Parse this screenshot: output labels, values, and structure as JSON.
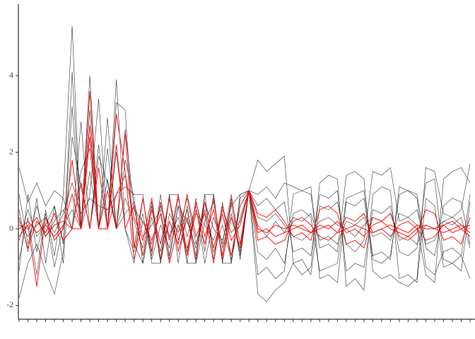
{
  "chart_data": {
    "type": "parallel",
    "categories": [
      null,
      null,
      null,
      null,
      null,
      null,
      null,
      null,
      null,
      null,
      null,
      null,
      null,
      null,
      null,
      null,
      null,
      null,
      null,
      null,
      null,
      null,
      null,
      null,
      null,
      null,
      null,
      null,
      null,
      null,
      null,
      null,
      null,
      null,
      null,
      null,
      null,
      null,
      null,
      null,
      null,
      null,
      null,
      null,
      null,
      null,
      null,
      null,
      null,
      null,
      null,
      null
    ],
    "ylim": [
      -2.36,
      5.83
    ],
    "yticks": [
      -2,
      0,
      2,
      4
    ],
    "series": [
      {
        "color": "#000000",
        "values": [
          0.5,
          -0.6,
          0.8,
          -0.9,
          0.6,
          -0.4,
          3.2,
          0,
          1.5,
          0,
          2.1,
          0,
          1.8,
          0.8,
          -0.9,
          0.7,
          -0.8,
          0.9,
          -0.9,
          0.6,
          -0.7,
          0.9,
          -0.8,
          0.7,
          -0.9,
          0.8,
          1,
          -0.6,
          -0.8,
          -0.5,
          -0.9,
          0.4,
          0.5,
          0.3,
          -1.1,
          -1.0,
          -0.9,
          0.8,
          0.9,
          1.0,
          -0.7,
          -0.6,
          -0.8,
          1.1,
          1.0,
          0.9,
          -0.5,
          -0.7,
          0.6,
          0.8,
          0.7,
          -0.4
        ]
      },
      {
        "color": "#000000",
        "values": [
          -0.8,
          0.3,
          -1.2,
          0.5,
          -0.7,
          0.9,
          5.3,
          0,
          0.9,
          3.4,
          0,
          3.9,
          0,
          -0.9,
          0.8,
          -0.7,
          0.9,
          -0.8,
          0.6,
          -0.9,
          0.8,
          -0.6,
          0.9,
          -0.9,
          0.7,
          -0.8,
          1,
          1.8,
          1.5,
          1.7,
          1.9,
          -0.9,
          -1.2,
          -1.0,
          1.2,
          1.4,
          1.3,
          -1.5,
          -1.3,
          -1.6,
          0.9,
          1.1,
          1.0,
          -1.3,
          -1.2,
          -1.4,
          0.8,
          0.6,
          -1.0,
          -0.9,
          -1.1,
          0.7
        ]
      },
      {
        "color": "#000000",
        "values": [
          1.6,
          0.7,
          1.2,
          0.6,
          1.0,
          0.8,
          0,
          2.8,
          0,
          1.9,
          1.2,
          0,
          2.6,
          0.5,
          0.2,
          -0.4,
          0.6,
          -0.2,
          0.3,
          -0.5,
          0.4,
          0.1,
          -0.3,
          0.5,
          -0.1,
          0.2,
          1,
          -1.7,
          -1.9,
          -1.6,
          -1.4,
          -0.9,
          -0.8,
          -1.2,
          0.6,
          0.5,
          0.7,
          -0.4,
          -0.6,
          -0.3,
          1.5,
          1.4,
          1.6,
          0.2,
          0.3,
          0.1,
          -1.2,
          -1.4,
          1.3,
          1.5,
          1.6,
          1.2
        ]
      },
      {
        "color": "#000000",
        "values": [
          -1.8,
          -0.9,
          -0.4,
          -1.1,
          -1.7,
          -0.6,
          4.1,
          0,
          3.1,
          0,
          0,
          3.3,
          3.1,
          -0.4,
          -0.9,
          0.3,
          -0.6,
          0.8,
          -0.3,
          0.5,
          -0.9,
          0.2,
          0.7,
          -0.5,
          0.4,
          -0.6,
          1,
          0.9,
          1.1,
          0.8,
          1.2,
          1.1,
          1.0,
          0.9,
          -0.5,
          -0.4,
          -0.6,
          1.4,
          1.5,
          1.3,
          -1.1,
          -1.3,
          -1.2,
          -1.4,
          -1.5,
          -1.3,
          1.6,
          1.5,
          0.4,
          0.3,
          0.5,
          1.7
        ]
      },
      {
        "color": "#000000",
        "values": [
          0.2,
          -0.2,
          0.1,
          0.3,
          -0.1,
          0.4,
          1.2,
          0.4,
          0.8,
          0.6,
          0.5,
          0.9,
          1.1,
          0.9,
          0.9,
          -0.9,
          -0.9,
          0.9,
          0.9,
          -0.9,
          -0.9,
          0.9,
          0.9,
          -0.9,
          -0.9,
          0.9,
          1,
          0.3,
          0.2,
          0.4,
          0.1,
          -0.2,
          -0.3,
          -0.1,
          0.2,
          0.3,
          0.1,
          0.0,
          -0.2,
          0.1,
          0.3,
          0.2,
          0.4,
          -0.3,
          -0.2,
          -0.4,
          0.1,
          0.0,
          0.2,
          0.3,
          0.1,
          0.0
        ]
      },
      {
        "color": "#000000",
        "values": [
          -0.3,
          0.5,
          -0.2,
          0.1,
          0.6,
          -0.9,
          2.4,
          1.1,
          0,
          2.2,
          0,
          2.0,
          0,
          -0.6,
          0.4,
          -0.8,
          0.1,
          -0.5,
          0.8,
          -0.2,
          0.6,
          -0.9,
          0.3,
          -0.4,
          0.9,
          -0.7,
          1,
          -1.2,
          -1.0,
          -1.3,
          -1.1,
          0.9,
          1.0,
          1.1,
          -1.3,
          -1.2,
          -1.4,
          0.7,
          0.6,
          0.8,
          -0.8,
          -0.9,
          -0.7,
          0.9,
          1.0,
          0.8,
          -1.0,
          -1.2,
          -0.6,
          -0.5,
          -0.7,
          -1.3
        ]
      },
      {
        "color": "#000000",
        "values": [
          0.9,
          -0.4,
          0.6,
          -0.2,
          0.2,
          0.5,
          0,
          1.5,
          2.1,
          0,
          1.3,
          0,
          0.8,
          0.2,
          -0.5,
          0.6,
          -0.9,
          0.4,
          -0.1,
          0.8,
          -0.4,
          0.5,
          -0.6,
          0.1,
          -0.8,
          0.3,
          1,
          0.6,
          0.8,
          0.5,
          0.7,
          -0.6,
          -0.5,
          -0.7,
          0.9,
          0.8,
          1.0,
          -1.1,
          -0.9,
          -1.0,
          0.5,
          0.4,
          0.6,
          -0.6,
          -0.7,
          -0.5,
          1.2,
          1.3,
          -0.8,
          -0.9,
          -0.7,
          0.9
        ]
      },
      {
        "color": "#000000",
        "values": [
          -1.1,
          0.9,
          -0.6,
          0.4,
          -1.0,
          0.1,
          0.5,
          0,
          4.0,
          0,
          2.9,
          0,
          0.4,
          0.7,
          -0.2,
          0.1,
          0.5,
          -0.7,
          0.6,
          0.2,
          -0.5,
          0.7,
          0.0,
          -0.3,
          0.6,
          0.9,
          1,
          0.1,
          -0.2,
          0.2,
          -0.1,
          0.3,
          0.2,
          0.4,
          -0.3,
          -0.2,
          -0.4,
          0.2,
          0.1,
          0.3,
          -0.2,
          -0.1,
          -0.3,
          0.4,
          0.3,
          0.5,
          -0.4,
          -0.3,
          0.2,
          0.1,
          0.3,
          -0.5
        ]
      },
      {
        "color": "#ff0000",
        "values": [
          0.1,
          0.0,
          0.3,
          -0.2,
          0.1,
          0.2,
          0,
          0,
          2.4,
          0,
          0,
          2.2,
          0,
          0.6,
          -0.7,
          0.5,
          -0.4,
          0.8,
          -0.6,
          0.3,
          -0.8,
          0.7,
          -0.5,
          0.4,
          -0.7,
          0.6,
          1,
          0.0,
          -0.1,
          0.1,
          0.0,
          0.1,
          0.0,
          -0.1,
          0.0,
          0.1,
          -0.1,
          0.0,
          0.1,
          0.0,
          -0.1,
          0.0,
          0.1,
          0.0,
          -0.1,
          0.1,
          0.0,
          0.0,
          0.1,
          -0.1,
          0.0,
          0.1
        ]
      },
      {
        "color": "#ff0000",
        "values": [
          -0.2,
          0.1,
          -1.5,
          0.3,
          -0.3,
          0.0,
          1.8,
          0,
          2.7,
          0,
          1.0,
          0,
          2.5,
          -0.5,
          0.8,
          -0.6,
          0.7,
          -0.3,
          0.9,
          -0.7,
          0.5,
          -0.4,
          0.8,
          -0.8,
          0.3,
          -0.5,
          1,
          -0.3,
          -0.2,
          -0.4,
          -0.3,
          0.2,
          0.3,
          0.1,
          -0.2,
          -0.3,
          -0.1,
          0.3,
          0.2,
          0.4,
          -0.1,
          0.0,
          -0.2,
          0.1,
          0.2,
          0.0,
          -0.3,
          -0.2,
          0.1,
          0.2,
          0.0,
          -0.2
        ]
      },
      {
        "color": "#ff0000",
        "values": [
          0.3,
          -0.5,
          0.2,
          -0.1,
          0.4,
          -0.3,
          0,
          1.2,
          0,
          1.6,
          0,
          0.9,
          1.4,
          0.3,
          -0.3,
          0.8,
          -0.8,
          0.2,
          -0.4,
          0.9,
          -0.2,
          0.4,
          -0.9,
          0.6,
          -0.3,
          0.1,
          1,
          0.4,
          0.3,
          0.5,
          0.2,
          -0.2,
          -0.1,
          -0.3,
          0.5,
          0.6,
          0.4,
          -0.4,
          -0.3,
          -0.5,
          0.3,
          0.2,
          0.4,
          -0.2,
          -0.3,
          -0.1,
          0.5,
          0.4,
          -0.3,
          -0.2,
          -0.4,
          0.3
        ]
      },
      {
        "color": "#ff0000",
        "values": [
          0.0,
          0.2,
          -0.1,
          0.1,
          -0.2,
          0.1,
          0.9,
          0,
          3.6,
          0,
          0,
          3.0,
          1.5,
          -0.8,
          0.2,
          -0.3,
          0.4,
          -0.9,
          0.1,
          -0.6,
          0.7,
          -0.2,
          0.5,
          -0.7,
          0.8,
          -0.4,
          1,
          -0.1,
          0.0,
          -0.2,
          -0.1,
          0.0,
          0.1,
          -0.1,
          0.1,
          0.0,
          0.2,
          -0.1,
          0.0,
          -0.2,
          0.1,
          0.2,
          0.0,
          -0.1,
          -0.2,
          0.0,
          0.1,
          0.0,
          -0.1,
          0.0,
          0.1,
          -0.1
        ]
      }
    ]
  }
}
